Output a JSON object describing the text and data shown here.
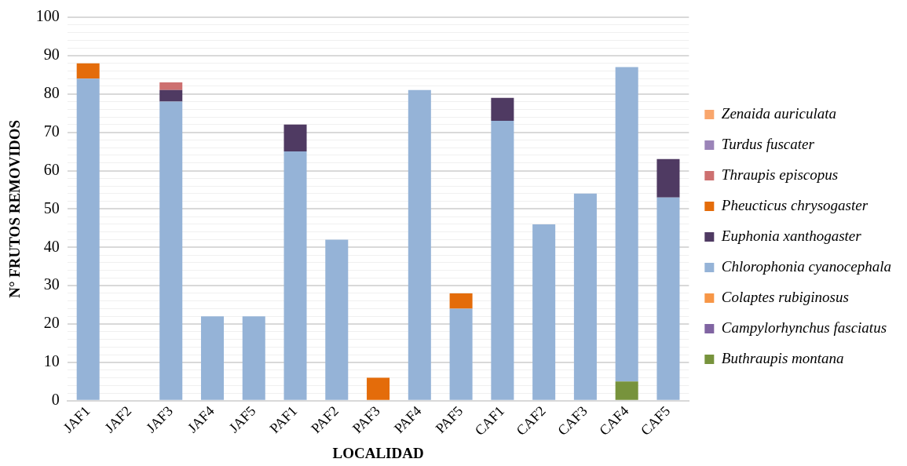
{
  "chart_data": {
    "type": "bar",
    "stacked": true,
    "xlabel": "LOCALIDAD",
    "ylabel": "N° FRUTOS REMOVIDOS",
    "categories": [
      "JAF1",
      "JAF2",
      "JAF3",
      "JAF4",
      "JAF5",
      "PAF1",
      "PAF2",
      "PAF3",
      "PAF4",
      "PAF5",
      "CAF1",
      "CAF2",
      "CAF3",
      "CAF4",
      "CAF5"
    ],
    "series": [
      {
        "name": "Buthraupis montana",
        "color": "#77933c",
        "values": [
          0,
          0,
          0,
          0,
          0,
          0,
          0,
          0,
          0,
          0,
          0,
          0,
          0,
          5,
          0
        ]
      },
      {
        "name": "Campylorhynchus fasciatus",
        "color": "#8064a2",
        "values": [
          0,
          0,
          0,
          0,
          0,
          0,
          0,
          0,
          0,
          0,
          0,
          0,
          0,
          0,
          0
        ]
      },
      {
        "name": "Colaptes rubiginosus",
        "color": "#f79646",
        "values": [
          0,
          0,
          0,
          0,
          0,
          0,
          0,
          0,
          0,
          0,
          0,
          0,
          0,
          0,
          0
        ]
      },
      {
        "name": "Chlorophonia cyanocephala",
        "color": "#95b3d7",
        "values": [
          84,
          0,
          78,
          22,
          22,
          65,
          42,
          0,
          81,
          24,
          73,
          46,
          54,
          82,
          53
        ]
      },
      {
        "name": "Euphonia xanthogaster",
        "color": "#4f3a62",
        "values": [
          0,
          0,
          3,
          0,
          0,
          7,
          0,
          0,
          0,
          0,
          6,
          0,
          0,
          0,
          10
        ]
      },
      {
        "name": "Pheucticus chrysogaster",
        "color": "#e46c0a",
        "values": [
          4,
          0,
          0,
          0,
          0,
          0,
          0,
          6,
          0,
          4,
          0,
          0,
          0,
          0,
          0
        ]
      },
      {
        "name": "Thraupis episcopus",
        "color": "#cd7070",
        "values": [
          0,
          0,
          2,
          0,
          0,
          0,
          0,
          0,
          0,
          0,
          0,
          0,
          0,
          0,
          0
        ]
      },
      {
        "name": "Turdus fuscater",
        "color": "#9b84b8",
        "values": [
          0,
          0,
          0,
          0,
          0,
          0,
          0,
          0,
          0,
          0,
          0,
          0,
          0,
          0,
          0
        ]
      },
      {
        "name": "Zenaida auriculata",
        "color": "#f9a66c",
        "values": [
          0,
          0,
          0,
          0,
          0,
          0,
          0,
          0,
          0,
          0,
          0,
          0,
          0,
          0,
          0
        ]
      }
    ],
    "ylim": [
      0,
      100
    ],
    "yticks": [
      0,
      {
        "value": 2,
        "label": null
      },
      {
        "value": 4,
        "label": null
      },
      {
        "value": 6,
        "label": null
      },
      {
        "value": 8,
        "label": null
      },
      10,
      {
        "value": 12,
        "label": null
      },
      {
        "value": 14,
        "label": null
      },
      {
        "value": 16,
        "label": null
      },
      {
        "value": 18,
        "label": null
      },
      20,
      {
        "value": 22,
        "label": null
      },
      {
        "value": 24,
        "label": null
      },
      {
        "value": 26,
        "label": null
      },
      {
        "value": 28,
        "label": null
      },
      30,
      {
        "value": 32,
        "label": null
      },
      {
        "value": 34,
        "label": null
      },
      {
        "value": 36,
        "label": null
      },
      {
        "value": 38,
        "label": null
      },
      40,
      {
        "value": 42,
        "label": null
      },
      {
        "value": 44,
        "label": null
      },
      {
        "value": 46,
        "label": null
      },
      {
        "value": 48,
        "label": null
      },
      50,
      {
        "value": 52,
        "label": null
      },
      {
        "value": 54,
        "label": null
      },
      {
        "value": 56,
        "label": null
      },
      {
        "value": 58,
        "label": null
      },
      60,
      {
        "value": 62,
        "label": null
      },
      {
        "value": 64,
        "label": null
      },
      {
        "value": 66,
        "label": null
      },
      {
        "value": 68,
        "label": null
      },
      70,
      {
        "value": 72,
        "label": null
      },
      {
        "value": 74,
        "label": null
      },
      {
        "value": 76,
        "label": null
      },
      {
        "value": 78,
        "label": null
      },
      80,
      {
        "value": 82,
        "label": null
      },
      {
        "value": 84,
        "label": null
      },
      {
        "value": 86,
        "label": null
      },
      {
        "value": 88,
        "label": null
      },
      90,
      {
        "value": 92,
        "label": null
      },
      {
        "value": 94,
        "label": null
      },
      {
        "value": 96,
        "label": null
      },
      {
        "value": 98,
        "label": null
      },
      100
    ],
    "grid": "y",
    "legend": "right"
  }
}
